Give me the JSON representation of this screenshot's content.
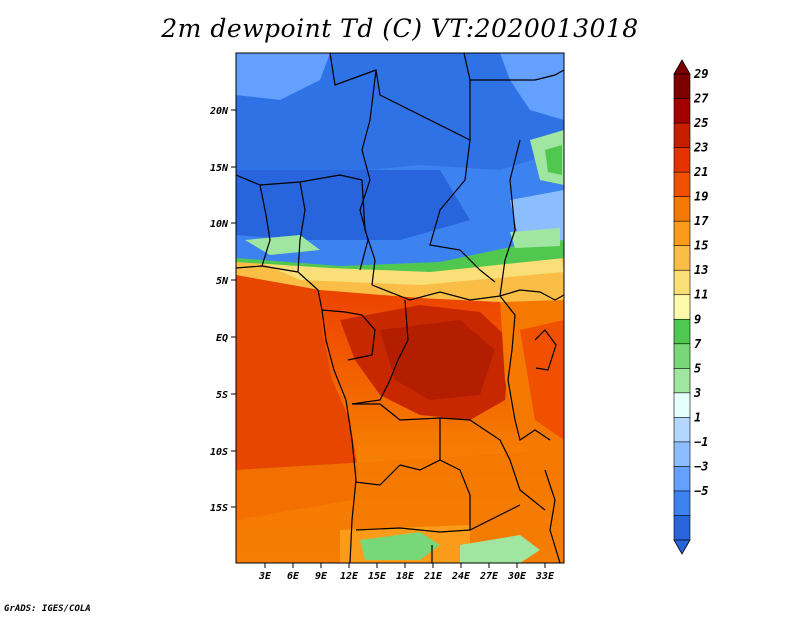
{
  "title": "2m dewpoint Td (C) VT:2020013018",
  "credit": "GrADS: IGES/COLA",
  "map": {
    "lat_labels": [
      "20N",
      "15N",
      "10N",
      "5N",
      "EQ",
      "5S",
      "10S",
      "15S"
    ],
    "lon_labels": [
      "3E",
      "6E",
      "9E",
      "12E",
      "15E",
      "18E",
      "21E",
      "24E",
      "27E",
      "30E",
      "33E"
    ]
  },
  "colorbar": {
    "labels": [
      "29",
      "27",
      "25",
      "23",
      "21",
      "19",
      "17",
      "15",
      "13",
      "11",
      "9",
      "7",
      "5",
      "3",
      "1",
      "−1",
      "−3",
      "−5"
    ],
    "colors": [
      "#7d0000",
      "#a50000",
      "#c81e00",
      "#e63200",
      "#f05000",
      "#f57800",
      "#fa9b19",
      "#fabe46",
      "#fade78",
      "#fffaaa",
      "#50c850",
      "#78d778",
      "#a0e6a0",
      "#e6ffff",
      "#b4d7ff",
      "#8cbeff",
      "#64a0ff",
      "#3c82f0",
      "#2864dc"
    ]
  }
}
